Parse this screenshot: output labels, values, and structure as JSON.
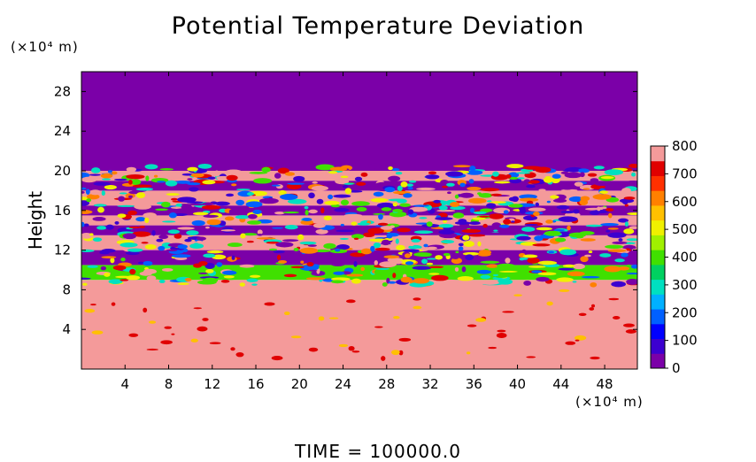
{
  "chart_data": {
    "type": "heatmap",
    "title": "Potential Temperature Deviation",
    "ylabel": "Height",
    "xlabel": "",
    "x_unit": "(×10⁴ m)",
    "y_unit": "(×10⁴ m)",
    "x_ticks": [
      4,
      8,
      12,
      16,
      20,
      24,
      28,
      32,
      36,
      40,
      44,
      48
    ],
    "y_ticks": [
      4,
      8,
      12,
      16,
      20,
      24,
      28
    ],
    "xlim": [
      0,
      51
    ],
    "ylim": [
      0,
      30
    ],
    "colorbar": {
      "ticks": [
        0,
        100,
        200,
        300,
        400,
        500,
        600,
        700,
        800
      ],
      "range": [
        0,
        800
      ],
      "colors": [
        "#7b00a8",
        "#3c00d0",
        "#0000ff",
        "#0060ff",
        "#00b0ff",
        "#00e0c0",
        "#00d060",
        "#40e000",
        "#a0f000",
        "#f0f000",
        "#ffc000",
        "#ff8000",
        "#ff3000",
        "#e00000",
        "#f49a9a"
      ]
    },
    "regions": [
      {
        "y_from": 0,
        "y_to": 9,
        "value": 780
      },
      {
        "y_from": 9,
        "y_to": 10.5,
        "value": 400
      },
      {
        "y_from": 10.5,
        "y_to": 12,
        "value": 50
      },
      {
        "y_from": 12,
        "y_to": 13.5,
        "value": 780
      },
      {
        "y_from": 13.5,
        "y_to": 14.5,
        "value": 50
      },
      {
        "y_from": 14.5,
        "y_to": 15.5,
        "value": 780
      },
      {
        "y_from": 15.5,
        "y_to": 16.5,
        "value": 50
      },
      {
        "y_from": 16.5,
        "y_to": 18,
        "value": 780
      },
      {
        "y_from": 18,
        "y_to": 19,
        "value": 50
      },
      {
        "y_from": 19,
        "y_to": 20,
        "value": 780
      },
      {
        "y_from": 20,
        "y_to": 30,
        "value": 0
      }
    ]
  },
  "footer": {
    "time_label": "TIME  =  100000.0"
  }
}
